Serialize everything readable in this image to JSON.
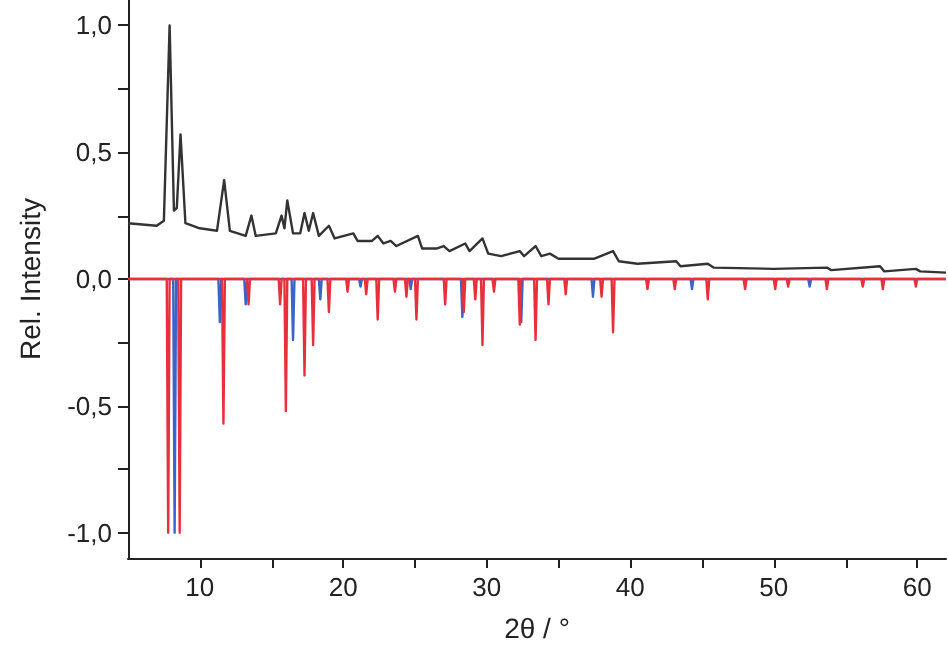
{
  "chart_data": {
    "type": "line",
    "xlabel": "2θ / °",
    "ylabel": "Rel. Intensity",
    "xlim": [
      5,
      62
    ],
    "ylim": [
      -1.1,
      1.1
    ],
    "xticks": [
      10,
      {
        "value": 15,
        "label": null
      },
      20,
      {
        "value": 25,
        "label": null
      },
      30,
      {
        "value": 35,
        "label": null
      },
      40,
      {
        "value": 45,
        "label": null
      },
      50,
      {
        "value": 55,
        "label": null
      },
      60
    ],
    "yticks": [
      {
        "value": -1,
        "label": "-1,0"
      },
      {
        "value": -0.75,
        "label": null
      },
      {
        "value": -0.5,
        "label": "-0,5"
      },
      {
        "value": -0.25,
        "label": null
      },
      {
        "value": 0,
        "label": "0,0"
      },
      {
        "value": 0.25,
        "label": null
      },
      {
        "value": 0.5,
        "label": "0,5"
      },
      {
        "value": 0.75,
        "label": null
      },
      {
        "value": 1,
        "label": "1,0"
      }
    ],
    "marker": "none",
    "line_style": "solid",
    "series": [
      {
        "color": "#3c64c8",
        "x": [
          5,
          8.15,
          8.25,
          8.35,
          11.3,
          11.4,
          11.5,
          13.1,
          13.2,
          13.3,
          16.4,
          16.5,
          16.6,
          18.3,
          18.4,
          18.5,
          21.1,
          21.2,
          21.3,
          24.6,
          24.7,
          24.8,
          28.2,
          28.3,
          28.4,
          32.3,
          32.4,
          32.5,
          37.3,
          37.4,
          37.5,
          44.2,
          44.3,
          44.4,
          52.4,
          52.5,
          52.6,
          62
        ],
        "values": [
          0,
          0,
          -1.0,
          0,
          0,
          -0.17,
          0,
          0,
          -0.1,
          0,
          0,
          -0.24,
          0,
          0,
          -0.08,
          0,
          0,
          -0.03,
          0,
          0,
          -0.04,
          0,
          0,
          -0.15,
          0,
          0,
          -0.17,
          0,
          0,
          -0.07,
          0,
          0,
          -0.04,
          0,
          0,
          -0.03,
          0,
          0
        ]
      },
      {
        "color": "#e8303c",
        "x": [
          5,
          7.7,
          7.8,
          7.9,
          8.5,
          8.6,
          8.7,
          11.55,
          11.65,
          11.75,
          13.3,
          13.4,
          13.5,
          15.5,
          15.6,
          15.7,
          15.9,
          16.0,
          16.1,
          17.2,
          17.3,
          17.4,
          17.8,
          17.9,
          18.0,
          18.9,
          19.0,
          19.1,
          20.2,
          20.3,
          20.4,
          21.5,
          21.6,
          21.7,
          22.3,
          22.4,
          22.5,
          23.5,
          23.6,
          23.7,
          24.3,
          24.4,
          24.5,
          25.0,
          25.1,
          25.2,
          27.0,
          27.1,
          27.2,
          28.3,
          28.4,
          28.5,
          29.1,
          29.2,
          29.3,
          29.6,
          29.7,
          29.8,
          30.4,
          30.5,
          30.6,
          32.2,
          32.3,
          32.4,
          33.3,
          33.4,
          33.5,
          34.2,
          34.3,
          34.4,
          35.4,
          35.5,
          35.6,
          37.9,
          38.0,
          38.1,
          38.7,
          38.8,
          38.9,
          41.1,
          41.2,
          41.3,
          43.0,
          43.1,
          43.2,
          45.3,
          45.4,
          45.5,
          47.9,
          48.0,
          48.1,
          50.0,
          50.1,
          50.2,
          50.9,
          51.0,
          51.1,
          53.6,
          53.7,
          53.8,
          56.1,
          56.2,
          56.3,
          57.5,
          57.6,
          57.7,
          59.8,
          59.9,
          60.0,
          62
        ],
        "values": [
          0,
          0,
          -1.0,
          0,
          0,
          -1.0,
          0,
          0,
          -0.57,
          0,
          0,
          -0.1,
          0,
          0,
          -0.1,
          0,
          0,
          -0.52,
          0,
          0,
          -0.38,
          0,
          0,
          -0.26,
          0,
          0,
          -0.13,
          0,
          0,
          -0.05,
          0,
          0,
          -0.06,
          0,
          0,
          -0.16,
          0,
          0,
          -0.05,
          0,
          0,
          -0.07,
          0,
          0,
          -0.16,
          0,
          0,
          -0.1,
          0,
          0,
          -0.13,
          0,
          0,
          -0.08,
          0,
          0,
          -0.26,
          0,
          0,
          -0.05,
          0,
          0,
          -0.18,
          0,
          0,
          -0.24,
          0,
          0,
          -0.1,
          0,
          0,
          -0.06,
          0,
          0,
          -0.07,
          0,
          0,
          -0.21,
          0,
          0,
          -0.04,
          0,
          0,
          -0.04,
          0,
          0,
          -0.08,
          0,
          0,
          -0.04,
          0,
          0,
          -0.04,
          0,
          0,
          -0.03,
          0,
          0,
          -0.04,
          0,
          0,
          -0.03,
          0,
          0,
          -0.04,
          0,
          0,
          -0.03,
          0,
          0
        ]
      },
      {
        "color": "#333333",
        "x": [
          5,
          7.0,
          7.5,
          7.9,
          8.2,
          8.4,
          8.66,
          9.0,
          10,
          11.2,
          11.7,
          12.1,
          13.2,
          13.6,
          13.9,
          15.3,
          15.7,
          15.9,
          16.1,
          16.5,
          17.0,
          17.3,
          17.6,
          17.9,
          18.3,
          19.0,
          19.4,
          20.7,
          21.0,
          22.0,
          22.4,
          22.8,
          23.3,
          23.7,
          25.2,
          25.5,
          26.5,
          27.0,
          27.4,
          28.5,
          28.8,
          29.7,
          30.1,
          31,
          32.3,
          32.6,
          33.4,
          33.8,
          34.4,
          35,
          37.5,
          38.8,
          39.2,
          40.5,
          43.2,
          43.5,
          45.4,
          45.8,
          50,
          53.7,
          54,
          57.4,
          57.7,
          59.9,
          60.2,
          62
        ],
        "values": [
          0.22,
          0.21,
          0.23,
          1.0,
          0.27,
          0.28,
          0.57,
          0.22,
          0.2,
          0.19,
          0.39,
          0.19,
          0.17,
          0.25,
          0.17,
          0.18,
          0.25,
          0.2,
          0.31,
          0.18,
          0.18,
          0.26,
          0.19,
          0.26,
          0.17,
          0.21,
          0.16,
          0.18,
          0.15,
          0.15,
          0.17,
          0.14,
          0.15,
          0.13,
          0.17,
          0.12,
          0.12,
          0.13,
          0.11,
          0.14,
          0.11,
          0.16,
          0.1,
          0.09,
          0.11,
          0.09,
          0.13,
          0.09,
          0.1,
          0.08,
          0.08,
          0.11,
          0.07,
          0.06,
          0.07,
          0.05,
          0.06,
          0.045,
          0.04,
          0.045,
          0.035,
          0.05,
          0.03,
          0.04,
          0.03,
          0.025
        ]
      }
    ]
  }
}
